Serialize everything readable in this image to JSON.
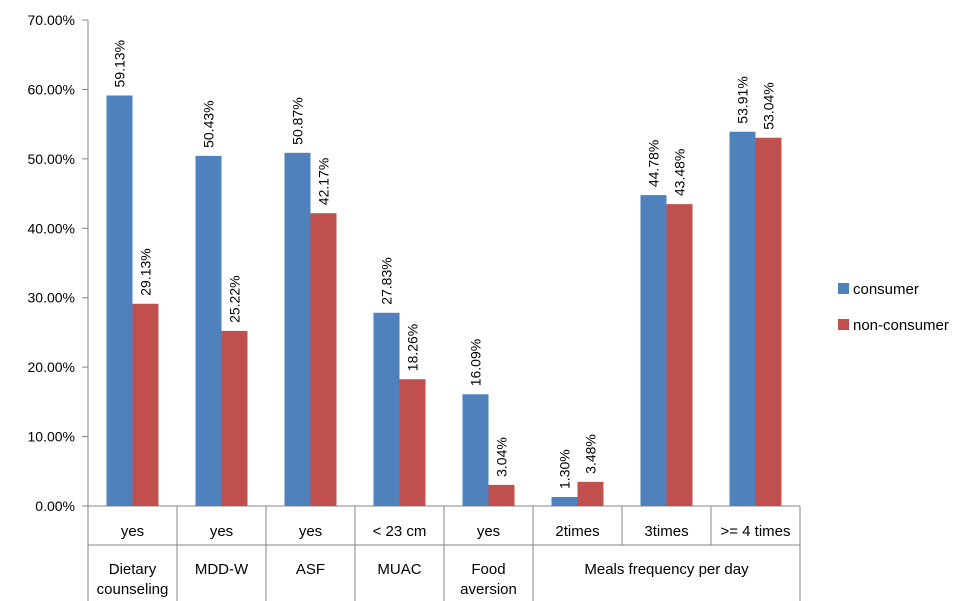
{
  "chart_data": {
    "type": "bar",
    "categories": [
      "yes",
      "yes",
      "yes",
      "< 23 cm",
      "yes",
      "2times",
      "3times",
      ">= 4 times"
    ],
    "groups": [
      {
        "label": "Dietary counseling",
        "lines": [
          "Dietary",
          "counseling"
        ],
        "count": 1
      },
      {
        "label": "MDD-W",
        "lines": [
          "MDD-W"
        ],
        "count": 1
      },
      {
        "label": "ASF",
        "lines": [
          "ASF"
        ],
        "count": 1
      },
      {
        "label": "MUAC",
        "lines": [
          "MUAC"
        ],
        "count": 1
      },
      {
        "label": "Food aversion",
        "lines": [
          "Food",
          "aversion"
        ],
        "count": 1
      },
      {
        "label": "Meals frequency per day",
        "lines": [
          "Meals frequency per day"
        ],
        "count": 3
      }
    ],
    "series": [
      {
        "name": "consumer",
        "color": "#4F81BD",
        "values": [
          59.13,
          50.43,
          50.87,
          27.83,
          16.09,
          1.3,
          44.78,
          53.91
        ]
      },
      {
        "name": "non-consumer",
        "color": "#C0504D",
        "values": [
          29.13,
          25.22,
          42.17,
          18.26,
          3.04,
          3.48,
          43.48,
          53.04
        ]
      }
    ],
    "ylim": [
      0,
      70
    ],
    "yticks": [
      0,
      10,
      20,
      30,
      40,
      50,
      60,
      70
    ],
    "ytick_labels": [
      "0.00%",
      "10.00%",
      "20.00%",
      "30.00%",
      "40.00%",
      "50.00%",
      "60.00%",
      "70.00%"
    ],
    "data_labels": [
      [
        "59.13%",
        "50.43%",
        "50.87%",
        "27.83%",
        "16.09%",
        "1.30%",
        "44.78%",
        "53.91%"
      ],
      [
        "29.13%",
        "25.22%",
        "42.17%",
        "18.26%",
        "3.04%",
        "3.48%",
        "43.48%",
        "53.04%"
      ]
    ],
    "legend_position": "right",
    "grid": false
  }
}
